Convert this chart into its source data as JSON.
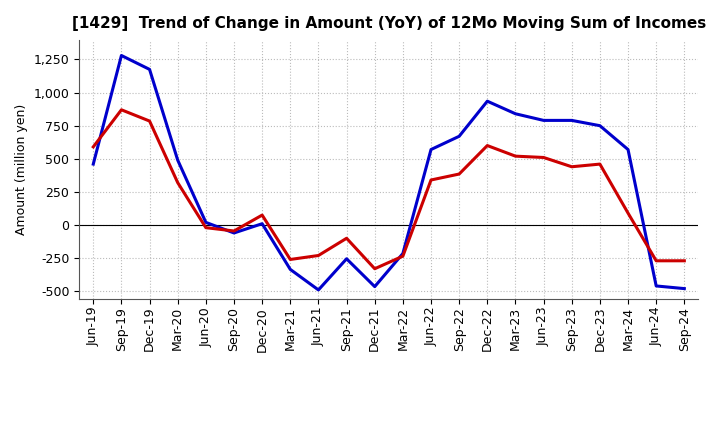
{
  "title": "[1429]  Trend of Change in Amount (YoY) of 12Mo Moving Sum of Incomes",
  "ylabel": "Amount (million yen)",
  "background_color": "#ffffff",
  "grid_color": "#bbbbbb",
  "x_labels": [
    "Jun-19",
    "Sep-19",
    "Dec-19",
    "Mar-20",
    "Jun-20",
    "Sep-20",
    "Dec-20",
    "Mar-21",
    "Jun-21",
    "Sep-21",
    "Dec-21",
    "Mar-22",
    "Jun-22",
    "Sep-22",
    "Dec-22",
    "Mar-23",
    "Jun-23",
    "Sep-23",
    "Dec-23",
    "Mar-24",
    "Jun-24",
    "Sep-24"
  ],
  "ordinary_income": [
    460,
    1280,
    1175,
    490,
    20,
    -60,
    10,
    -335,
    -490,
    -255,
    -465,
    -215,
    570,
    670,
    935,
    840,
    790,
    790,
    750,
    570,
    -460,
    -480
  ],
  "net_income": [
    590,
    870,
    785,
    320,
    -20,
    -45,
    75,
    -260,
    -230,
    -100,
    -330,
    -235,
    340,
    385,
    600,
    520,
    510,
    440,
    460,
    90,
    -270,
    -270
  ],
  "ylim": [
    -560,
    1400
  ],
  "yticks": [
    -500,
    -250,
    0,
    250,
    500,
    750,
    1000,
    1250
  ],
  "ordinary_color": "#0000cc",
  "net_color": "#cc0000",
  "line_width": 2.2,
  "title_fontsize": 11,
  "label_fontsize": 9,
  "tick_fontsize": 9,
  "legend_fontsize": 10
}
